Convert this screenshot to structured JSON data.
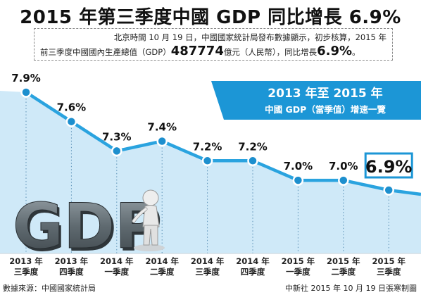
{
  "title": "2015 年第三季度中國 GDP 同比增長 6.9%",
  "intro": {
    "line1": "北京時間 10 月 19 日，中國國家統計局發布數據顯示，初步核算，2015 年",
    "line2_a": "前三季度中國國內生產總值（GDP）",
    "line2_value": "487774",
    "line2_b": "億元（人民幣），同比增長",
    "line2_pct": "6.9%",
    "line2_end": "。"
  },
  "panel": {
    "title": "2013 年至 2015 年",
    "subtitle": "中國 GDP（當季值）增速一覽"
  },
  "gdp_art_text": "GDP",
  "footer": {
    "source": "數據來源：中國國家統計局",
    "credit": "中新社 2015 年 10 月 19 日張寒制圖"
  },
  "colors": {
    "line": "#2aa3df",
    "fill": "#cfe9f8",
    "panel": "#1c96d6",
    "highlight_border": "#1c96d6"
  },
  "chart_data": {
    "type": "area",
    "categories": [
      [
        "2013 年",
        "三季度"
      ],
      [
        "2013 年",
        "四季度"
      ],
      [
        "2014 年",
        "一季度"
      ],
      [
        "2014 年",
        "二季度"
      ],
      [
        "2014 年",
        "三季度"
      ],
      [
        "2014 年",
        "四季度"
      ],
      [
        "2015 年",
        "一季度"
      ],
      [
        "2015 年",
        "二季度"
      ],
      [
        "2015 年",
        "三季度"
      ]
    ],
    "values": [
      7.9,
      7.6,
      7.3,
      7.4,
      7.2,
      7.2,
      7.0,
      7.0,
      6.9
    ],
    "labels": [
      "7.9%",
      "7.6%",
      "7.3%",
      "7.4%",
      "7.2%",
      "7.2%",
      "7.0%",
      "7.0%",
      "6.9%"
    ],
    "highlight_index": 8,
    "ylim": [
      6.5,
      8.1
    ],
    "grid": "vertical dotted"
  }
}
